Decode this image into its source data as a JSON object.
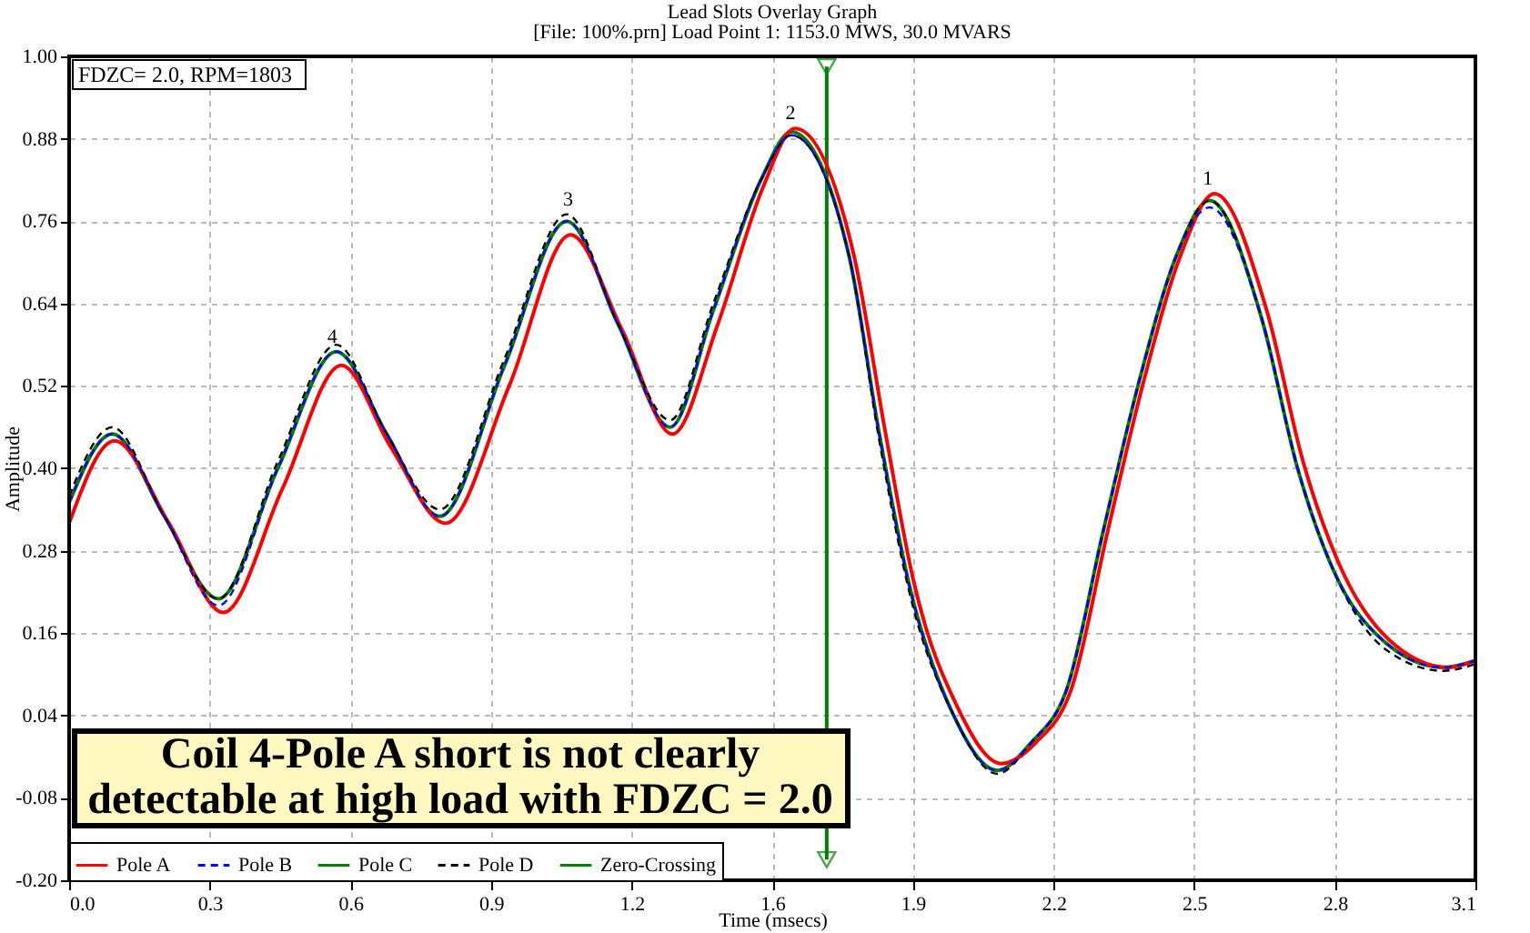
{
  "chart_data": {
    "type": "line",
    "title": "Lead Slots Overlay Graph",
    "subtitle": "[File: 100%.prn]  Load Point 1: 1153.0 MWS,  30.0 MVARS",
    "xlabel": "Time (msecs)",
    "ylabel": "Amplitude",
    "x": [
      0,
      0.095,
      0.21,
      0.329,
      0.46,
      0.589,
      0.7,
      0.817,
      0.96,
      1.097,
      1.21,
      1.325,
      1.42,
      1.525,
      1.592,
      1.719,
      1.786,
      1.852,
      1.95,
      2.046,
      2.12,
      2.2,
      2.28,
      2.36,
      2.441,
      2.514,
      2.628,
      2.708,
      2.788,
      2.895,
      3.029,
      3.1
    ],
    "series": [
      {
        "name": "Pole A",
        "color": "#ff0000",
        "line_style": "solid",
        "x": [
          0,
          0.1,
          0.22,
          0.34,
          0.47,
          0.6,
          0.71,
          0.83,
          0.97,
          1.105,
          1.22,
          1.33,
          1.43,
          1.53,
          1.6,
          1.73,
          1.8,
          1.86,
          1.96,
          2.055,
          2.13,
          2.21,
          2.29,
          2.37,
          2.45,
          2.525,
          2.64,
          2.72,
          2.8,
          2.91,
          3.04,
          3.1
        ],
        "values": [
          0.32,
          0.44,
          0.32,
          0.19,
          0.37,
          0.55,
          0.43,
          0.32,
          0.52,
          0.74,
          0.6,
          0.45,
          0.61,
          0.81,
          0.895,
          0.71,
          0.45,
          0.24,
          0.05,
          -0.03,
          0.0,
          0.08,
          0.31,
          0.53,
          0.71,
          0.8,
          0.63,
          0.41,
          0.26,
          0.15,
          0.11,
          0.12
        ]
      },
      {
        "name": "Pole B",
        "color": "#0000ff",
        "line_style": "dashed",
        "values": [
          0.35,
          0.45,
          0.33,
          0.2,
          0.4,
          0.57,
          0.45,
          0.33,
          0.55,
          0.76,
          0.61,
          0.46,
          0.63,
          0.82,
          0.885,
          0.71,
          0.45,
          0.23,
          0.04,
          -0.04,
          0.0,
          0.08,
          0.31,
          0.53,
          0.71,
          0.78,
          0.62,
          0.4,
          0.25,
          0.15,
          0.11,
          0.12
        ]
      },
      {
        "name": "Pole C",
        "color": "#008000",
        "line_style": "solid",
        "values": [
          0.35,
          0.45,
          0.33,
          0.21,
          0.4,
          0.57,
          0.45,
          0.33,
          0.55,
          0.76,
          0.61,
          0.46,
          0.63,
          0.82,
          0.89,
          0.71,
          0.45,
          0.23,
          0.04,
          -0.04,
          0.0,
          0.08,
          0.31,
          0.53,
          0.71,
          0.79,
          0.62,
          0.4,
          0.25,
          0.15,
          0.11,
          0.12
        ]
      },
      {
        "name": "Pole D",
        "color": "#000000",
        "line_style": "dashed",
        "values": [
          0.36,
          0.46,
          0.33,
          0.21,
          0.41,
          0.58,
          0.45,
          0.34,
          0.56,
          0.77,
          0.61,
          0.47,
          0.64,
          0.82,
          0.885,
          0.71,
          0.44,
          0.22,
          0.04,
          -0.045,
          0.0,
          0.08,
          0.31,
          0.53,
          0.71,
          0.79,
          0.62,
          0.4,
          0.25,
          0.14,
          0.105,
          0.115
        ]
      },
      {
        "name": "Zero-Crossing",
        "color": "#008000",
        "line_style": "solid",
        "marker": "triangle",
        "x": [
          1.67,
          1.67
        ],
        "values": [
          0.985,
          -0.17
        ]
      }
    ],
    "xlim": [
      0,
      3.1
    ],
    "xticks": [
      {
        "value": 0,
        "label": "0.0"
      },
      {
        "value": 0.31,
        "label": "0.3"
      },
      {
        "value": 0.62,
        "label": "0.6"
      },
      {
        "value": 0.93,
        "label": "0.9"
      },
      {
        "value": 1.24,
        "label": "1.2"
      },
      {
        "value": 1.55,
        "label": "1.6"
      },
      {
        "value": 1.86,
        "label": "1.9"
      },
      {
        "value": 2.17,
        "label": "2.2"
      },
      {
        "value": 2.48,
        "label": "2.5"
      },
      {
        "value": 2.79,
        "label": "2.8"
      },
      {
        "value": 3.1,
        "label": "3.1"
      }
    ],
    "ylim": [
      -0.2,
      1.0
    ],
    "yticks": [
      {
        "value": -0.2,
        "label": "-0.20"
      },
      {
        "value": -0.08,
        "label": "-0.08"
      },
      {
        "value": 0.04,
        "label": "0.04"
      },
      {
        "value": 0.16,
        "label": "0.16"
      },
      {
        "value": 0.28,
        "label": "0.28"
      },
      {
        "value": 0.4,
        "label": "0.40"
      },
      {
        "value": 0.52,
        "label": "0.52"
      },
      {
        "value": 0.64,
        "label": "0.64"
      },
      {
        "value": 0.76,
        "label": "0.76"
      },
      {
        "value": 0.88,
        "label": "0.88"
      },
      {
        "value": 1.0,
        "label": "1.00"
      }
    ],
    "grid": true,
    "legend": "bottom left",
    "annotations": [
      {
        "text": "4",
        "x": 0.58,
        "y": 0.57
      },
      {
        "text": "3",
        "x": 1.1,
        "y": 0.77
      },
      {
        "text": "2",
        "x": 1.59,
        "y": 0.895
      },
      {
        "text": "1",
        "x": 2.51,
        "y": 0.8
      },
      "FDZC= 2.0, RPM=1803",
      "Coil 4-Pole A short is not clearly\ndetectable at high load with FDZC = 2.0"
    ]
  }
}
